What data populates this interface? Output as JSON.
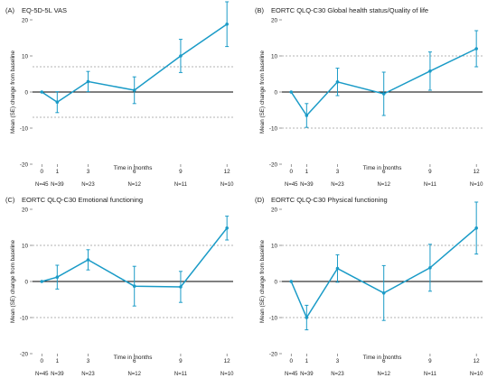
{
  "colors": {
    "line": "#1a9bc7",
    "refline": "#9a9a9a",
    "zero": "#000000",
    "text": "#222222"
  },
  "chart_data": [
    {
      "type": "line",
      "panel_label": "(A)",
      "title": "EQ-5D-5L VAS",
      "xlabel": "Time in months",
      "ylabel": "Mean (SE) change from baseline",
      "ylim": [
        -20,
        20
      ],
      "yticks": [
        "20",
        "10",
        "0",
        "-10",
        "-20"
      ],
      "x": [
        0,
        1,
        3,
        6,
        9,
        12
      ],
      "xticks": [
        "0",
        "1",
        "3",
        "6",
        "9",
        "12"
      ],
      "values": [
        0,
        -2.8,
        2.9,
        0.5,
        10.0,
        18.8
      ],
      "se": [
        0,
        2.9,
        2.8,
        3.7,
        4.6,
        6.2
      ],
      "reference_lines": [
        7,
        -7
      ],
      "n": [
        "N=45",
        "N=39",
        "N=23",
        "N=12",
        "N=11",
        "N=10"
      ]
    },
    {
      "type": "line",
      "panel_label": "(B)",
      "title": "EORTC QLQ-C30 Global health status/Quality of life",
      "xlabel": "Time in months",
      "ylabel": "Mean (SE) change from baseline",
      "ylim": [
        -20,
        20
      ],
      "yticks": [
        "20",
        "10",
        "0",
        "-10",
        "-20"
      ],
      "x": [
        0,
        1,
        3,
        6,
        9,
        12
      ],
      "xticks": [
        "0",
        "1",
        "3",
        "6",
        "9",
        "12"
      ],
      "values": [
        0,
        -6.5,
        2.8,
        -0.5,
        5.8,
        12.0
      ],
      "se": [
        0,
        3.3,
        3.8,
        6.0,
        5.3,
        5.0
      ],
      "reference_lines": [
        10,
        -10
      ],
      "n": [
        "N=45",
        "N=39",
        "N=23",
        "N=12",
        "N=11",
        "N=10"
      ]
    },
    {
      "type": "line",
      "panel_label": "(C)",
      "title": "EORTC QLQ-C30 Emotional functioning",
      "xlabel": "Time in months",
      "ylabel": "Mean (SE) change from baseline",
      "ylim": [
        -20,
        20
      ],
      "yticks": [
        "20",
        "10",
        "0",
        "-10",
        "-20"
      ],
      "x": [
        0,
        1,
        3,
        6,
        9,
        12
      ],
      "xticks": [
        "0",
        "1",
        "3",
        "6",
        "9",
        "12"
      ],
      "values": [
        0,
        1.2,
        6.0,
        -1.3,
        -1.5,
        14.8
      ],
      "se": [
        0,
        3.3,
        2.8,
        5.5,
        4.3,
        3.3
      ],
      "reference_lines": [
        10,
        -10
      ],
      "n": [
        "N=45",
        "N=39",
        "N=23",
        "N=12",
        "N=11",
        "N=10"
      ]
    },
    {
      "type": "line",
      "panel_label": "(D)",
      "title": "EORTC QLQ-C30 Physical functioning",
      "xlabel": "Time in months",
      "ylabel": "Mean (SE) change from baseline",
      "ylim": [
        -20,
        20
      ],
      "yticks": [
        "20",
        "10",
        "0",
        "-10",
        "-20"
      ],
      "x": [
        0,
        1,
        3,
        6,
        9,
        12
      ],
      "xticks": [
        "0",
        "1",
        "3",
        "6",
        "9",
        "12"
      ],
      "values": [
        0,
        -10.0,
        3.6,
        -3.2,
        3.8,
        14.8
      ],
      "se": [
        0,
        3.4,
        3.8,
        7.6,
        6.5,
        7.2
      ],
      "reference_lines": [
        10,
        -10
      ],
      "n": [
        "N=45",
        "N=39",
        "N=23",
        "N=12",
        "N=11",
        "N=10"
      ]
    }
  ]
}
